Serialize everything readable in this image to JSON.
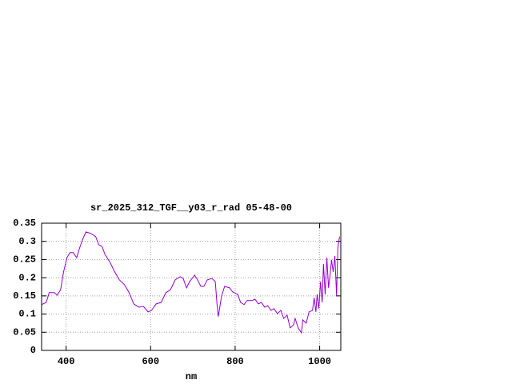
{
  "chart_data": {
    "type": "line",
    "title": "sr_2025_312_TGF__y03_r_rad 05-48-00",
    "xlabel": "nm",
    "color": "#9400d3",
    "grid": true,
    "xlim": [
      342,
      1050
    ],
    "ylim": [
      0,
      0.35
    ],
    "xticks": [
      400,
      600,
      800,
      1000
    ],
    "yticks": [
      0,
      0.05,
      0.1,
      0.15,
      0.2,
      0.25,
      0.3,
      0.35
    ],
    "x": [
      342,
      353,
      360,
      372,
      379,
      387,
      394,
      402,
      409,
      417,
      425,
      432,
      440,
      447,
      458,
      470,
      477,
      485,
      492,
      504,
      515,
      526,
      538,
      549,
      560,
      572,
      583,
      594,
      602,
      613,
      625,
      636,
      647,
      658,
      670,
      677,
      685,
      692,
      704,
      711,
      719,
      726,
      734,
      745,
      753,
      757,
      760,
      768,
      775,
      787,
      794,
      806,
      813,
      821,
      828,
      840,
      847,
      855,
      862,
      870,
      877,
      885,
      892,
      900,
      908,
      915,
      923,
      930,
      938,
      942,
      949,
      957,
      960,
      968,
      975,
      983,
      987,
      991,
      994,
      998,
      1002,
      1006,
      1009,
      1013,
      1017,
      1021,
      1025,
      1028,
      1032,
      1036,
      1040,
      1043,
      1047
    ],
    "values": [
      0.126,
      0.132,
      0.159,
      0.159,
      0.152,
      0.167,
      0.216,
      0.255,
      0.269,
      0.269,
      0.255,
      0.282,
      0.308,
      0.326,
      0.322,
      0.313,
      0.291,
      0.286,
      0.264,
      0.242,
      0.216,
      0.194,
      0.181,
      0.159,
      0.128,
      0.119,
      0.121,
      0.106,
      0.11,
      0.128,
      0.132,
      0.159,
      0.167,
      0.194,
      0.203,
      0.198,
      0.172,
      0.189,
      0.207,
      0.194,
      0.176,
      0.176,
      0.194,
      0.198,
      0.189,
      0.128,
      0.093,
      0.15,
      0.176,
      0.172,
      0.161,
      0.154,
      0.132,
      0.126,
      0.137,
      0.137,
      0.141,
      0.128,
      0.132,
      0.119,
      0.123,
      0.11,
      0.115,
      0.101,
      0.11,
      0.088,
      0.097,
      0.062,
      0.07,
      0.088,
      0.062,
      0.048,
      0.084,
      0.075,
      0.106,
      0.11,
      0.145,
      0.106,
      0.154,
      0.115,
      0.189,
      0.132,
      0.238,
      0.154,
      0.255,
      0.172,
      0.211,
      0.249,
      0.216,
      0.26,
      0.15,
      0.282,
      0.313
    ]
  }
}
